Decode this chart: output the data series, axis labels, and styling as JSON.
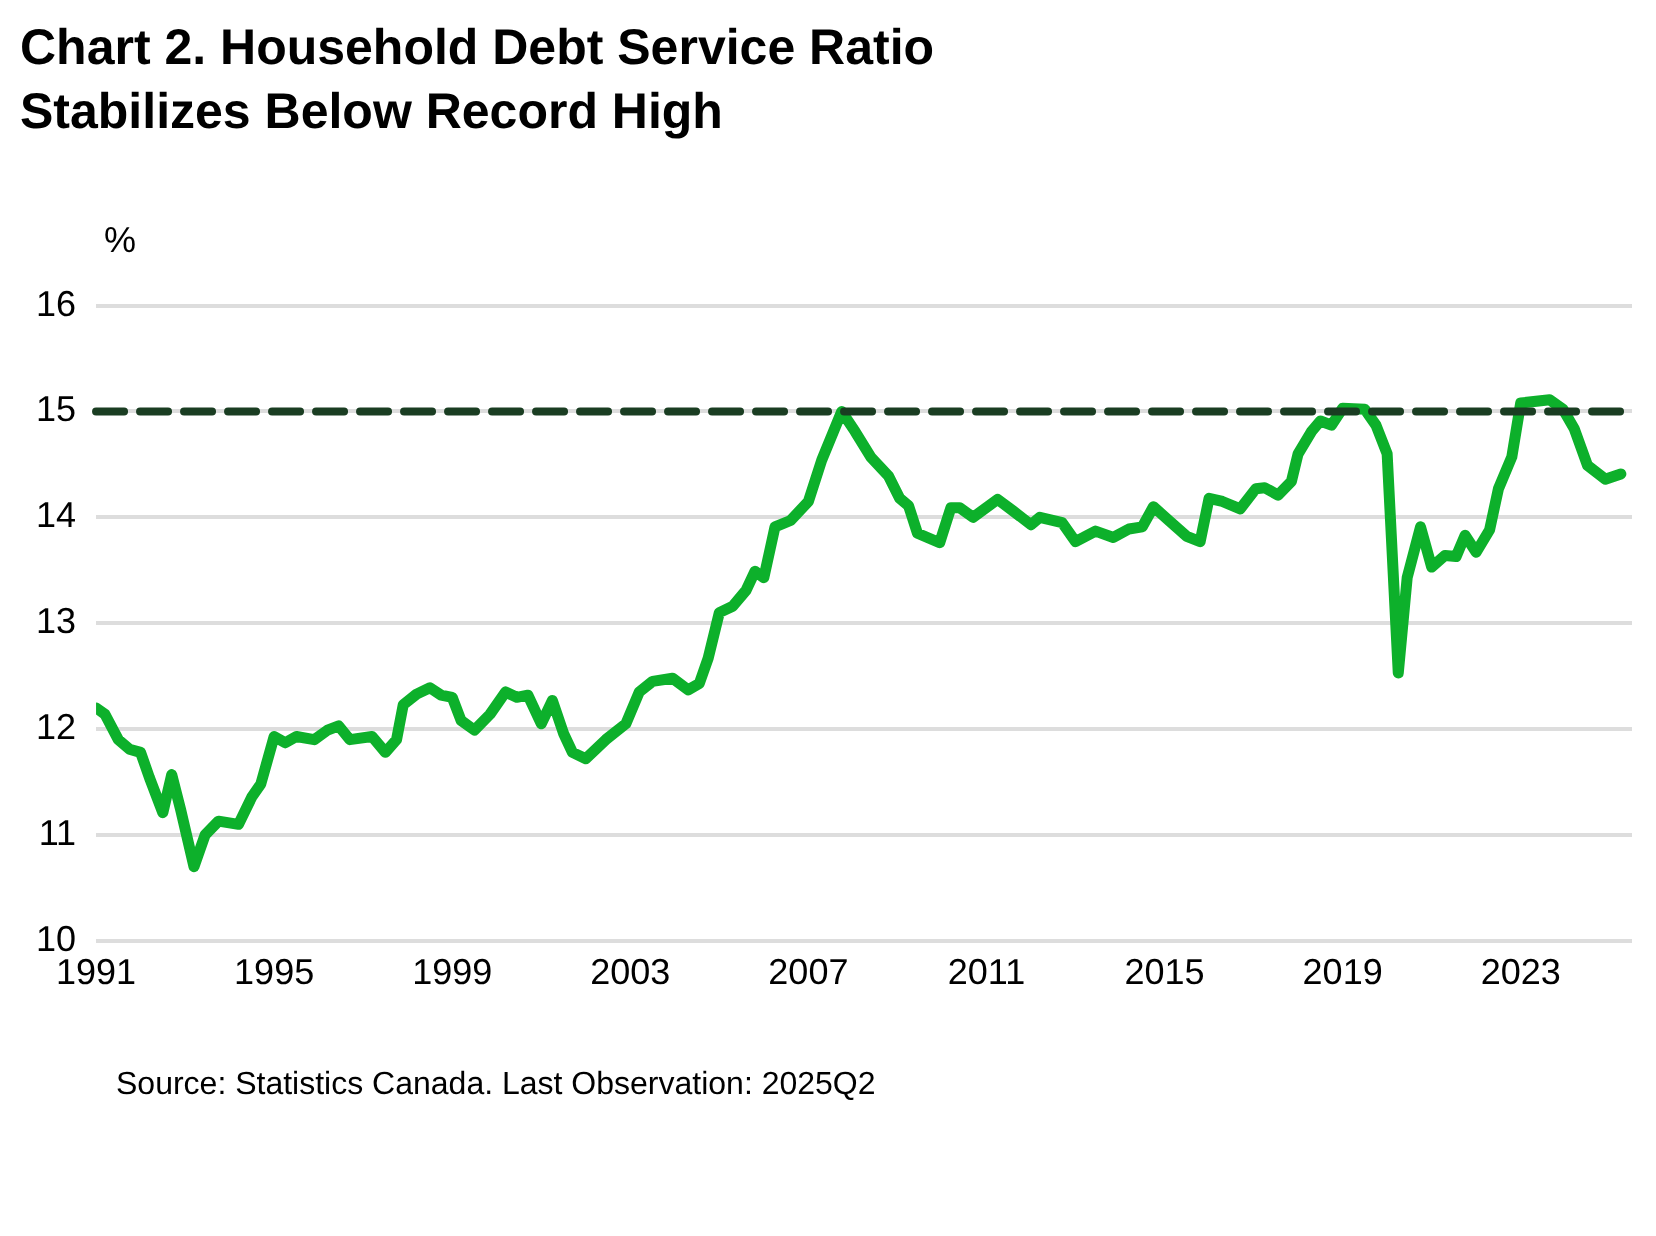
{
  "chart_data": {
    "type": "line",
    "title": "Chart 2. Household Debt Service Ratio\nStabilizes Below Record High",
    "ylabel": "%",
    "annotations": [
      "Source: Statistics Canada. Last Observation: 2025Q2"
    ],
    "xlim": [
      1991,
      2025.5
    ],
    "xticks": [
      1991,
      1995,
      1999,
      2003,
      2007,
      2011,
      2015,
      2019,
      2023
    ],
    "ylim": [
      10,
      16
    ],
    "yticks": [
      10,
      11,
      12,
      13,
      14,
      15,
      16
    ],
    "grid": "y",
    "legend": false,
    "marker": "none",
    "line_style": "solid",
    "ref_lines": [
      {
        "axis": "y",
        "value": 15,
        "color": "#1a3d22",
        "line_style": "dashed"
      }
    ],
    "series": [
      {
        "color": "#0db02b",
        "x": [
          1991.0,
          1991.2,
          1991.5,
          1991.75,
          1992.0,
          1992.2,
          1992.5,
          1992.7,
          1992.9,
          1993.2,
          1993.45,
          1993.75,
          1994.2,
          1994.5,
          1994.7,
          1995.0,
          1995.25,
          1995.5,
          1995.9,
          1996.2,
          1996.45,
          1996.7,
          1997.2,
          1997.5,
          1997.75,
          1997.9,
          1998.2,
          1998.5,
          1998.75,
          1999.0,
          1999.2,
          1999.5,
          1999.85,
          2000.2,
          2000.45,
          2000.7,
          2001.0,
          2001.25,
          2001.5,
          2001.7,
          2002.0,
          2002.45,
          2002.9,
          2003.2,
          2003.5,
          2003.95,
          2004.3,
          2004.55,
          2004.75,
          2005.0,
          2005.3,
          2005.6,
          2005.8,
          2006.0,
          2006.25,
          2006.6,
          2007.0,
          2007.3,
          2007.75,
          2008.05,
          2008.4,
          2008.8,
          2009.05,
          2009.25,
          2009.45,
          2009.95,
          2010.2,
          2010.4,
          2010.7,
          2011.25,
          2011.6,
          2012.0,
          2012.2,
          2012.7,
          2013.0,
          2013.45,
          2013.85,
          2014.2,
          2014.5,
          2014.75,
          2015.1,
          2015.5,
          2015.8,
          2016.0,
          2016.3,
          2016.7,
          2017.05,
          2017.25,
          2017.55,
          2017.85,
          2018.0,
          2018.3,
          2018.5,
          2018.75,
          2019.0,
          2019.5,
          2019.75,
          2020.0,
          2020.25,
          2020.45,
          2020.75,
          2021.0,
          2021.3,
          2021.55,
          2021.75,
          2022.0,
          2022.3,
          2022.5,
          2022.8,
          2023.0,
          2023.65,
          2023.95,
          2024.2,
          2024.5,
          2024.9,
          2025.25
        ],
        "values": [
          12.2,
          12.14,
          11.9,
          11.81,
          11.78,
          11.54,
          11.21,
          11.57,
          11.24,
          10.7,
          11.0,
          11.13,
          11.1,
          11.36,
          11.48,
          11.93,
          11.87,
          11.93,
          11.9,
          11.99,
          12.03,
          11.9,
          11.93,
          11.78,
          11.9,
          12.23,
          12.33,
          12.39,
          12.32,
          12.3,
          12.08,
          11.99,
          12.14,
          12.35,
          12.3,
          12.32,
          12.05,
          12.27,
          11.96,
          11.78,
          11.72,
          11.9,
          12.05,
          12.35,
          12.45,
          12.48,
          12.37,
          12.43,
          12.67,
          13.1,
          13.16,
          13.31,
          13.49,
          13.43,
          13.91,
          13.97,
          14.15,
          14.54,
          15.0,
          14.81,
          14.57,
          14.39,
          14.18,
          14.11,
          13.85,
          13.76,
          14.09,
          14.09,
          14.0,
          14.17,
          14.06,
          13.93,
          14.0,
          13.95,
          13.77,
          13.87,
          13.81,
          13.89,
          13.91,
          14.1,
          13.97,
          13.82,
          13.77,
          14.18,
          14.15,
          14.08,
          14.27,
          14.28,
          14.21,
          14.34,
          14.6,
          14.81,
          14.91,
          14.87,
          15.03,
          15.02,
          14.87,
          14.6,
          12.53,
          13.43,
          13.91,
          13.53,
          13.64,
          13.63,
          13.83,
          13.67,
          13.88,
          14.27,
          14.57,
          15.08,
          15.11,
          15.02,
          14.84,
          14.49,
          14.36,
          14.41
        ]
      }
    ]
  }
}
